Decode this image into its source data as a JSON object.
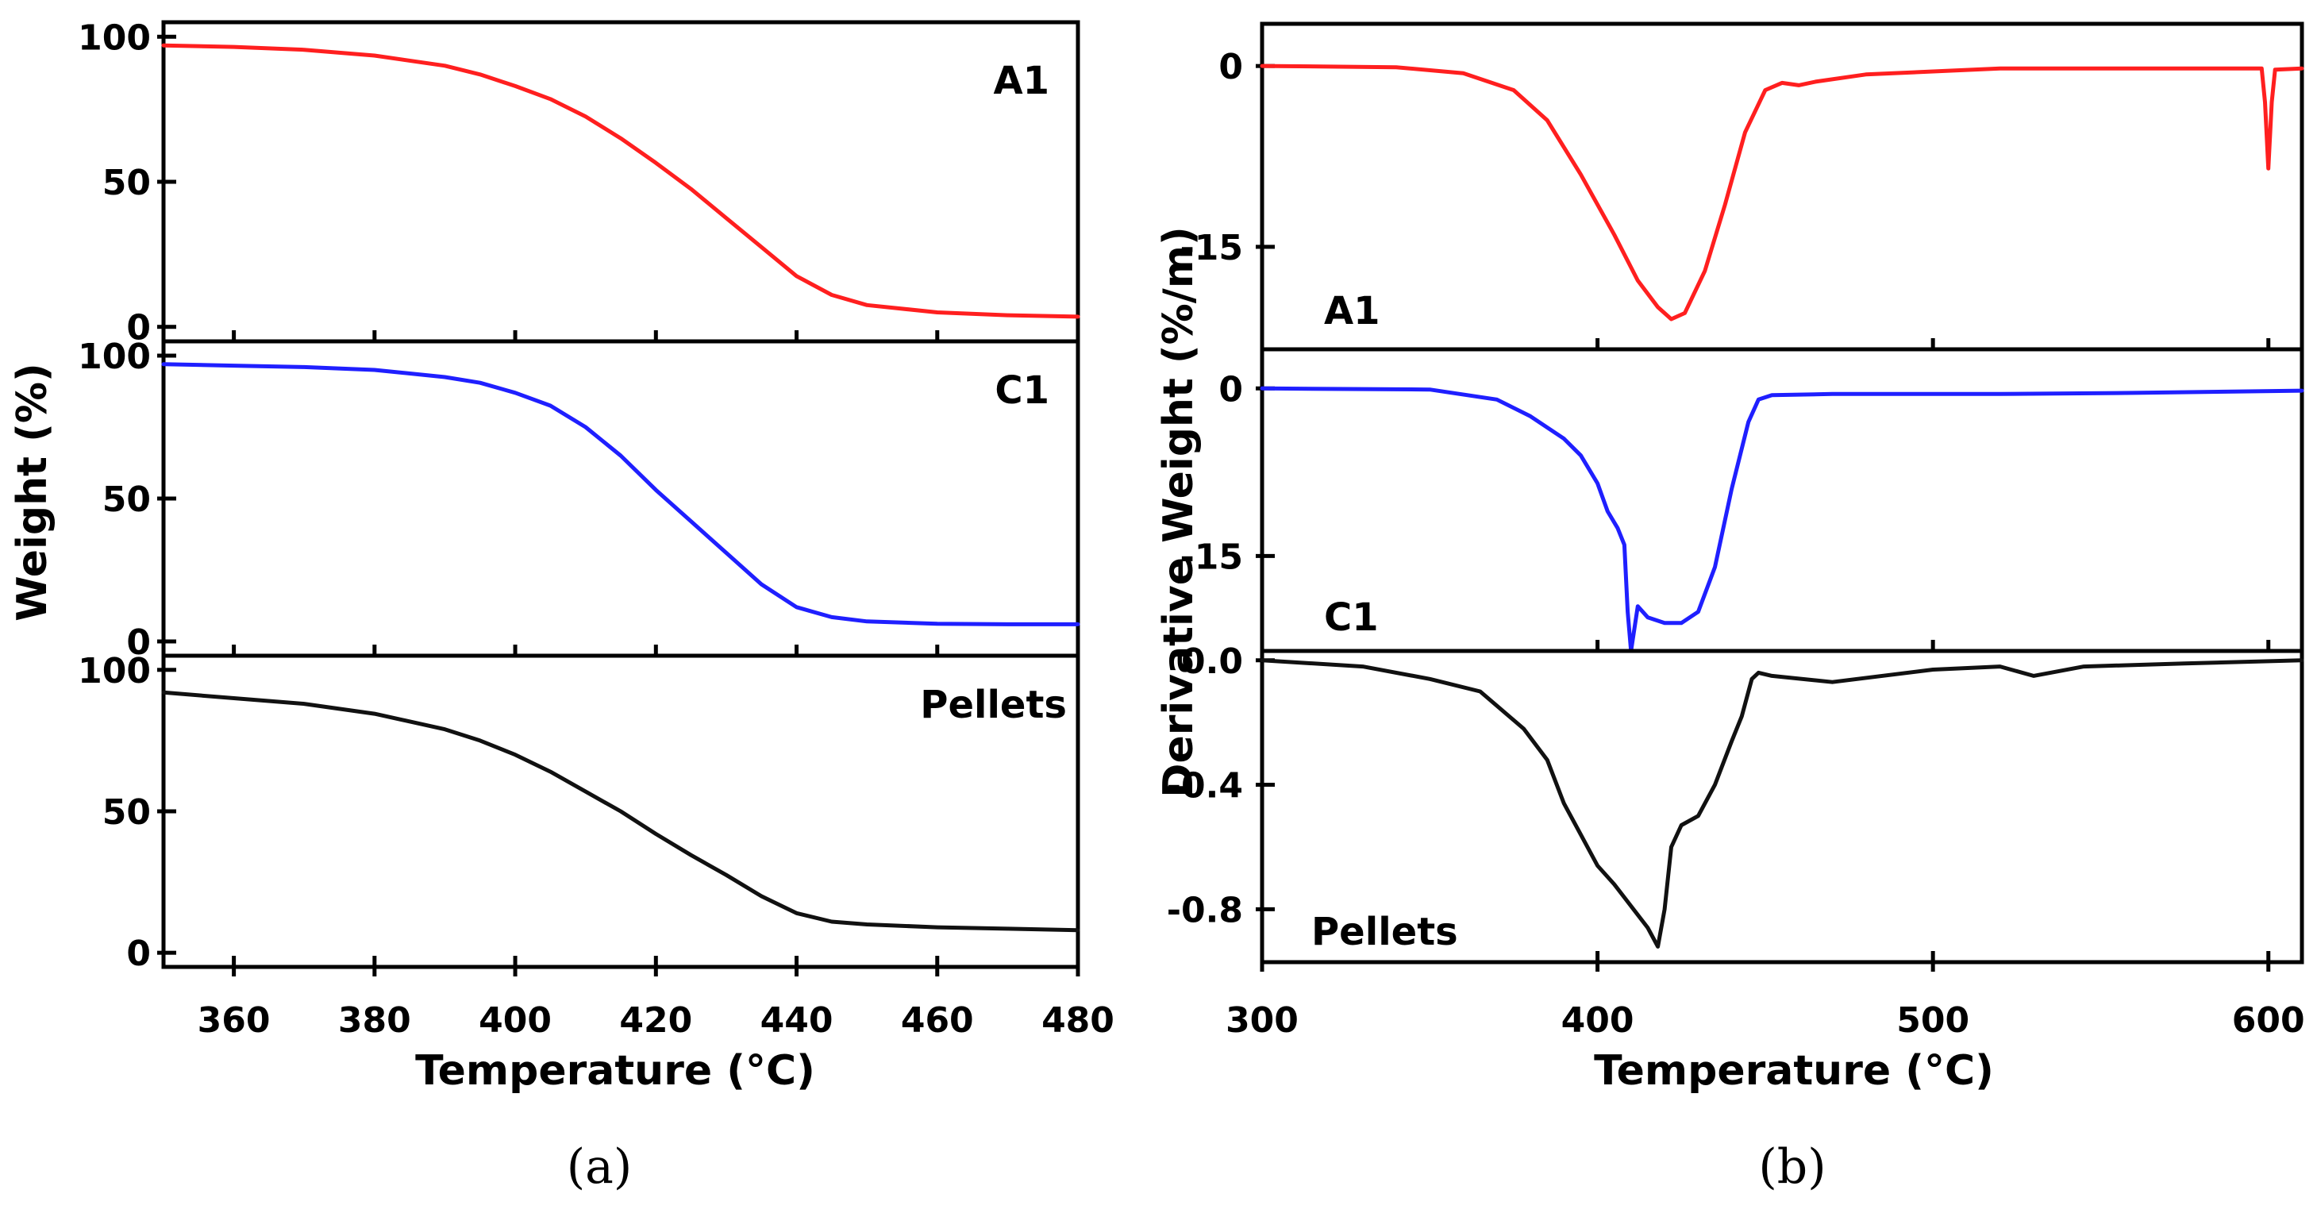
{
  "chart_data": [
    {
      "type": "line",
      "caption": "(a)",
      "xlabel": "Temperature (°C)",
      "ylabel": "Weight (%)",
      "xlim": [
        350,
        480
      ],
      "xticks": [
        "360",
        "380",
        "400",
        "420",
        "440",
        "460",
        "480"
      ],
      "xtick_values": [
        360,
        380,
        400,
        420,
        440,
        460,
        480
      ],
      "panels": [
        {
          "name": "A1",
          "color": "#ff1f1f",
          "ylim": [
            -5,
            105
          ],
          "yticks": [
            "0",
            "50",
            "100"
          ],
          "ytick_values": [
            0,
            50,
            100
          ],
          "x": [
            350,
            360,
            370,
            380,
            390,
            395,
            400,
            405,
            410,
            415,
            420,
            425,
            430,
            435,
            440,
            445,
            450,
            460,
            470,
            480
          ],
          "y": [
            97,
            96.5,
            95.5,
            93.5,
            90,
            87,
            83,
            78.5,
            72.5,
            65,
            56.5,
            47.5,
            37.5,
            27.5,
            17.5,
            11,
            7.5,
            5,
            4,
            3.5
          ]
        },
        {
          "name": "C1",
          "color": "#1f1fff",
          "ylim": [
            -5,
            105
          ],
          "yticks": [
            "0",
            "50",
            "100"
          ],
          "ytick_values": [
            0,
            50,
            100
          ],
          "x": [
            350,
            360,
            370,
            380,
            390,
            395,
            400,
            405,
            410,
            415,
            420,
            425,
            430,
            435,
            440,
            445,
            450,
            460,
            470,
            480
          ],
          "y": [
            97,
            96.5,
            96,
            95,
            92.5,
            90.5,
            87,
            82.5,
            75,
            65,
            53,
            42,
            31,
            20,
            12,
            8.5,
            7,
            6.2,
            6,
            6
          ]
        },
        {
          "name": "Pellets",
          "color": "#111111",
          "ylim": [
            -5,
            105
          ],
          "yticks": [
            "0",
            "50",
            "100"
          ],
          "ytick_values": [
            0,
            50,
            100
          ],
          "x": [
            350,
            360,
            370,
            380,
            390,
            395,
            400,
            405,
            410,
            415,
            420,
            425,
            430,
            435,
            440,
            445,
            450,
            460,
            470,
            480
          ],
          "y": [
            92,
            90,
            88,
            84.5,
            79,
            75,
            70,
            64,
            57,
            50,
            42,
            34.5,
            27.5,
            20,
            14,
            11,
            10,
            9,
            8.5,
            8
          ]
        }
      ]
    },
    {
      "type": "line",
      "caption": "(b)",
      "xlabel": "Temperature (°C)",
      "ylabel": "Derivative Weight (%/m)",
      "xlim": [
        300,
        610
      ],
      "xticks": [
        "300",
        "400",
        "500",
        "600"
      ],
      "xtick_values": [
        300,
        400,
        500,
        600
      ],
      "panels": [
        {
          "name": "A1",
          "color": "#ff1f1f",
          "ylim": [
            -23.5,
            3.5
          ],
          "yticks": [
            "0",
            "-15"
          ],
          "ytick_values": [
            0,
            -15
          ],
          "x": [
            300,
            340,
            360,
            375,
            385,
            395,
            405,
            412,
            418,
            422,
            426,
            432,
            438,
            444,
            450,
            455,
            460,
            465,
            480,
            520,
            560,
            598,
            599,
            600,
            601,
            602,
            610
          ],
          "y": [
            0,
            -0.1,
            -0.6,
            -2,
            -4.5,
            -9,
            -14,
            -17.8,
            -20,
            -21,
            -20.5,
            -17,
            -11.5,
            -5.5,
            -2,
            -1.4,
            -1.6,
            -1.3,
            -0.7,
            -0.2,
            -0.2,
            -0.2,
            -3,
            -8.5,
            -3,
            -0.3,
            -0.2
          ]
        },
        {
          "name": "C1",
          "color": "#1f1fff",
          "ylim": [
            -23.5,
            3.5
          ],
          "yticks": [
            "0",
            "-15"
          ],
          "ytick_values": [
            0,
            -15
          ],
          "x": [
            300,
            350,
            370,
            380,
            390,
            395,
            400,
            403,
            406,
            408,
            409,
            410,
            412,
            415,
            420,
            425,
            430,
            435,
            440,
            445,
            448,
            452,
            470,
            520,
            560,
            610
          ],
          "y": [
            0,
            -0.1,
            -1,
            -2.5,
            -4.5,
            -6,
            -8.5,
            -11,
            -12.5,
            -14,
            -20,
            -23.5,
            -19.5,
            -20.5,
            -21,
            -21,
            -20,
            -16,
            -9,
            -3,
            -1,
            -0.6,
            -0.5,
            -0.5,
            -0.4,
            -0.2
          ]
        },
        {
          "name": "Pellets",
          "color": "#111111",
          "ylim": [
            -0.97,
            0.03
          ],
          "yticks": [
            "0.0",
            "-0.4",
            "-0.8"
          ],
          "ytick_values": [
            0,
            -0.4,
            -0.8
          ],
          "x": [
            300,
            330,
            350,
            365,
            378,
            385,
            390,
            395,
            400,
            405,
            410,
            415,
            418,
            420,
            422,
            425,
            430,
            435,
            440,
            443,
            446,
            448,
            452,
            470,
            500,
            520,
            530,
            545,
            575,
            610
          ],
          "y": [
            0,
            -0.02,
            -0.06,
            -0.1,
            -0.22,
            -0.32,
            -0.46,
            -0.56,
            -0.66,
            -0.72,
            -0.79,
            -0.86,
            -0.92,
            -0.8,
            -0.6,
            -0.53,
            -0.5,
            -0.4,
            -0.26,
            -0.18,
            -0.06,
            -0.04,
            -0.05,
            -0.07,
            -0.03,
            -0.02,
            -0.05,
            -0.02,
            -0.01,
            0
          ]
        }
      ]
    }
  ]
}
